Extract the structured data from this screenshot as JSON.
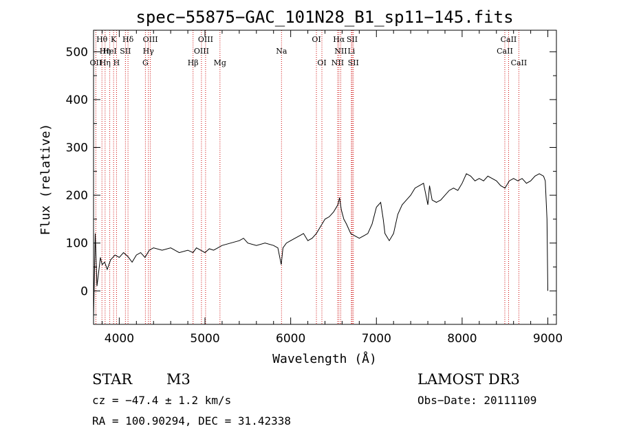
{
  "chart_data": {
    "type": "line",
    "title": "spec−55875−GAC_101N28_B1_sp11−145.fits",
    "xlabel": "Wavelength (Å)",
    "ylabel": "Flux (relative)",
    "xlim": [
      3700,
      9100
    ],
    "ylim": [
      -70,
      545
    ],
    "x_ticks": [
      4000,
      5000,
      6000,
      7000,
      8000,
      9000
    ],
    "y_ticks": [
      0,
      100,
      200,
      300,
      400,
      500
    ],
    "grid": false,
    "series": [
      {
        "x": [
          3700,
          3720,
          3740,
          3760,
          3780,
          3800,
          3830,
          3860,
          3900,
          3950,
          4000,
          4050,
          4100,
          4150,
          4200,
          4250,
          4300,
          4350,
          4400,
          4500,
          4600,
          4700,
          4800,
          4860,
          4900,
          4950,
          5000,
          5050,
          5100,
          5150,
          5200,
          5300,
          5400,
          5450,
          5500,
          5600,
          5700,
          5800,
          5850,
          5890,
          5910,
          5950,
          6000,
          6050,
          6100,
          6150,
          6200,
          6250,
          6300,
          6350,
          6400,
          6450,
          6500,
          6550,
          6570,
          6590,
          6620,
          6650,
          6700,
          6750,
          6800,
          6850,
          6900,
          6950,
          7000,
          7050,
          7080,
          7100,
          7150,
          7200,
          7250,
          7300,
          7350,
          7400,
          7450,
          7500,
          7550,
          7600,
          7620,
          7650,
          7700,
          7750,
          7800,
          7850,
          7900,
          7950,
          8000,
          8050,
          8100,
          8150,
          8200,
          8250,
          8300,
          8350,
          8400,
          8450,
          8500,
          8550,
          8600,
          8650,
          8700,
          8750,
          8800,
          8850,
          8900,
          8950,
          8970,
          8990,
          9000
        ],
        "y": [
          -55,
          120,
          10,
          40,
          70,
          55,
          60,
          45,
          65,
          75,
          70,
          80,
          72,
          60,
          75,
          80,
          70,
          85,
          90,
          85,
          90,
          80,
          85,
          80,
          90,
          85,
          80,
          88,
          85,
          90,
          95,
          100,
          105,
          110,
          100,
          95,
          100,
          95,
          90,
          55,
          90,
          100,
          105,
          110,
          115,
          120,
          105,
          110,
          120,
          135,
          150,
          155,
          165,
          180,
          195,
          170,
          150,
          140,
          120,
          115,
          110,
          115,
          120,
          140,
          175,
          185,
          150,
          120,
          105,
          120,
          160,
          180,
          190,
          200,
          215,
          220,
          225,
          180,
          220,
          190,
          185,
          190,
          200,
          210,
          215,
          210,
          225,
          245,
          240,
          230,
          235,
          230,
          240,
          235,
          230,
          220,
          215,
          230,
          235,
          230,
          235,
          225,
          230,
          240,
          245,
          240,
          230,
          150,
          0
        ]
      }
    ],
    "line_labels": [
      {
        "label": "Hθ",
        "x": 3798,
        "row": 0
      },
      {
        "label": "K",
        "x": 3934,
        "row": 0
      },
      {
        "label": "Hδ",
        "x": 4102,
        "row": 0
      },
      {
        "label": "OIII",
        "x": 4363,
        "row": 0
      },
      {
        "label": "OIII",
        "x": 5007,
        "row": 0
      },
      {
        "label": "OI",
        "x": 6300,
        "row": 0
      },
      {
        "label": "Hα",
        "x": 6563,
        "row": 0
      },
      {
        "label": "SII",
        "x": 6717,
        "row": 0
      },
      {
        "label": "CaII",
        "x": 8542,
        "row": 0
      },
      {
        "label": "Hη",
        "x": 3835,
        "row": 1
      },
      {
        "label": "HeI",
        "x": 3889,
        "row": 1
      },
      {
        "label": "SII",
        "x": 4072,
        "row": 1
      },
      {
        "label": "Hγ",
        "x": 4340,
        "row": 1
      },
      {
        "label": "OIII",
        "x": 4959,
        "row": 1
      },
      {
        "label": "Na",
        "x": 5893,
        "row": 1
      },
      {
        "label": "NII",
        "x": 6584,
        "row": 1
      },
      {
        "label": "Li",
        "x": 6708,
        "row": 1
      },
      {
        "label": "CaII",
        "x": 8498,
        "row": 1
      },
      {
        "label": "OII",
        "x": 3727,
        "row": 2
      },
      {
        "label": "Hη",
        "x": 3835,
        "row": 2
      },
      {
        "label": "H",
        "x": 3968,
        "row": 2
      },
      {
        "label": "G",
        "x": 4305,
        "row": 2
      },
      {
        "label": "Hβ",
        "x": 4861,
        "row": 2
      },
      {
        "label": "Mg",
        "x": 5175,
        "row": 2
      },
      {
        "label": "OI",
        "x": 6364,
        "row": 2
      },
      {
        "label": "NII",
        "x": 6548,
        "row": 2
      },
      {
        "label": "SII",
        "x": 6731,
        "row": 2
      },
      {
        "label": "CaII",
        "x": 8662,
        "row": 2
      }
    ]
  },
  "info": {
    "object_class": "STAR",
    "subclass": "M3",
    "cz": "cz = −47.4 ± 1.2 km/s",
    "coords": "RA = 100.90294, DEC =  31.42338",
    "survey": "LAMOST DR3",
    "obs_date": "Obs−Date: 20111109"
  },
  "colors": {
    "spectrum": "#000000",
    "line_marker": "#cc0000",
    "axes": "#000000"
  }
}
